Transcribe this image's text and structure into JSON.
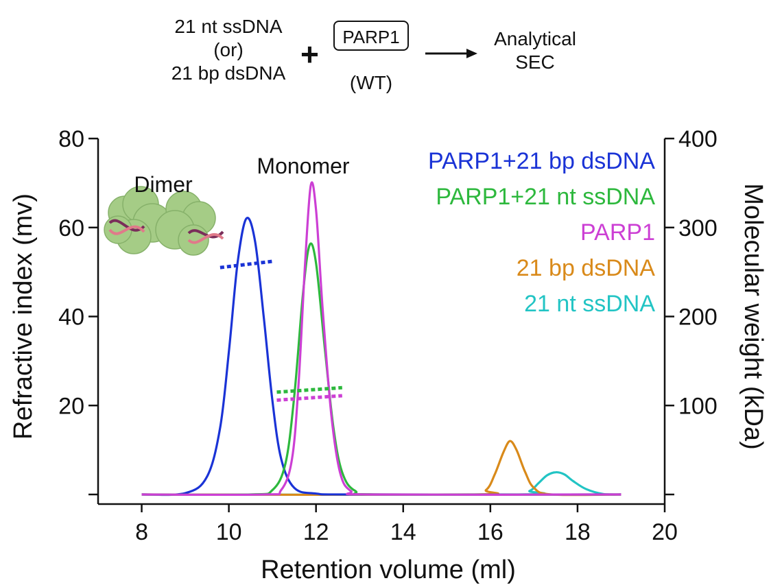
{
  "scheme": {
    "left_lines": [
      "21 nt ssDNA",
      "(or)",
      "21 bp dsDNA"
    ],
    "plus": "+",
    "box_label": "PARP1",
    "box_sub": "(WT)",
    "right_lines": [
      "Analytical",
      "SEC"
    ]
  },
  "colors": {
    "dsdna_complex": "#1a33d6",
    "ssdna_complex": "#2db83d",
    "parp1": "#cc3fd4",
    "dsdna": "#d98a1a",
    "ssdna": "#22c4c4",
    "axis": "#111111"
  },
  "chart_data": {
    "type": "line",
    "xlabel": "Retention volume (ml)",
    "ylabel": "Refractive index (mv)",
    "y2label": "Molecular weight (kDa)",
    "xlim": [
      7,
      20
    ],
    "ylim": [
      0,
      80
    ],
    "y2lim": [
      0,
      400
    ],
    "x_ticks": [
      8,
      10,
      12,
      14,
      16,
      18,
      20
    ],
    "y_ticks": [
      20,
      40,
      60,
      80
    ],
    "y2_ticks": [
      100,
      200,
      300,
      400
    ],
    "legend_position": "top-right",
    "annotations": [
      "Dimer",
      "Monomer"
    ],
    "series": [
      {
        "name": "PARP1+21 bp dsDNA",
        "color_key": "dsdna_complex",
        "x": [
          8.0,
          9.0,
          9.5,
          9.8,
          10.0,
          10.2,
          10.4,
          10.6,
          10.8,
          11.0,
          11.2,
          11.5,
          12.0,
          13.0,
          19.0
        ],
        "y": [
          0.0,
          0.3,
          4.0,
          15.0,
          32.0,
          52.0,
          62.0,
          57.0,
          40.0,
          21.0,
          8.0,
          1.5,
          0.2,
          0.0,
          0.0
        ]
      },
      {
        "name": "PARP1+21 nt ssDNA",
        "color_key": "ssdna_complex",
        "x": [
          8.0,
          10.5,
          11.0,
          11.3,
          11.5,
          11.7,
          11.85,
          12.0,
          12.2,
          12.4,
          12.6,
          12.9,
          13.5,
          19.0
        ],
        "y": [
          0.0,
          0.0,
          1.0,
          7.0,
          22.0,
          45.0,
          56.0,
          52.0,
          33.0,
          15.0,
          5.0,
          0.8,
          0.0,
          0.0
        ]
      },
      {
        "name": "PARP1",
        "color_key": "parp1",
        "x": [
          8.0,
          10.8,
          11.2,
          11.45,
          11.6,
          11.75,
          11.88,
          12.0,
          12.15,
          12.35,
          12.55,
          12.8,
          13.3,
          19.0
        ],
        "y": [
          0.0,
          0.0,
          1.0,
          8.0,
          25.0,
          52.0,
          69.5,
          64.0,
          42.0,
          18.0,
          5.0,
          0.8,
          0.0,
          0.0
        ]
      },
      {
        "name": "21 bp dsDNA",
        "color_key": "dsdna",
        "x": [
          8.0,
          15.5,
          15.9,
          16.1,
          16.3,
          16.45,
          16.6,
          16.8,
          17.0,
          17.4,
          19.0
        ],
        "y": [
          0.0,
          0.0,
          1.0,
          4.5,
          9.5,
          12.0,
          10.0,
          5.0,
          1.5,
          0.0,
          0.0
        ]
      },
      {
        "name": "21 nt ssDNA",
        "color_key": "ssdna",
        "x": [
          8.0,
          16.5,
          16.9,
          17.1,
          17.3,
          17.5,
          17.7,
          17.9,
          18.2,
          18.6,
          19.0
        ],
        "y": [
          0.0,
          0.0,
          0.8,
          2.5,
          4.3,
          5.0,
          4.5,
          3.0,
          1.2,
          0.1,
          0.0
        ]
      }
    ],
    "mw_segments": [
      {
        "color_key": "dsdna_complex",
        "x": [
          9.8,
          11.0
        ],
        "y2": [
          255,
          262
        ]
      },
      {
        "color_key": "ssdna_complex",
        "x": [
          11.1,
          12.6
        ],
        "y2": [
          115,
          120
        ]
      },
      {
        "color_key": "parp1",
        "x": [
          11.1,
          12.6
        ],
        "y2": [
          106,
          111
        ]
      }
    ]
  }
}
